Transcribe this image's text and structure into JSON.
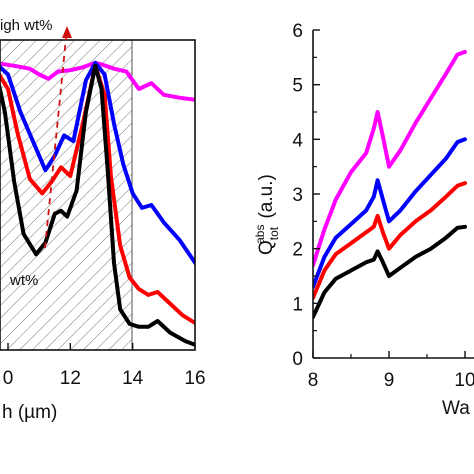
{
  "chart_data": [
    {
      "type": "line",
      "panel": "left",
      "xlabel": "h (µm)",
      "ylabel": "",
      "xlim": [
        9.6,
        16.2
      ],
      "ylim": [
        0,
        1.0
      ],
      "xticks": [
        "0",
        "12",
        "14",
        "16"
      ],
      "grid": false,
      "hatched_region": [
        9.6,
        14
      ],
      "annotations": {
        "arrow_label": "igh wt%",
        "low_label": "wt%"
      },
      "series": [
        {
          "color": "#ff00ff",
          "x": [
            9.6,
            10.2,
            10.7,
            11.0,
            11.3,
            11.6,
            12.0,
            12.4,
            12.8,
            13.0,
            13.4,
            13.8,
            14.2,
            14.6,
            15.0,
            15.5,
            16.2
          ],
          "y": [
            0.99,
            0.98,
            0.97,
            0.95,
            0.935,
            0.96,
            0.965,
            0.975,
            0.99,
            0.985,
            0.97,
            0.96,
            0.9,
            0.92,
            0.88,
            0.87,
            0.86
          ]
        },
        {
          "color": "#0000ff",
          "x": [
            9.6,
            10.0,
            10.4,
            10.8,
            11.2,
            11.5,
            11.8,
            12.1,
            12.5,
            12.8,
            13.1,
            13.4,
            13.7,
            14.0,
            14.3,
            14.6,
            15.0,
            15.5,
            16.2
          ],
          "y": [
            0.99,
            0.95,
            0.82,
            0.72,
            0.62,
            0.67,
            0.74,
            0.72,
            0.93,
            0.99,
            0.95,
            0.78,
            0.64,
            0.54,
            0.49,
            0.5,
            0.44,
            0.38,
            0.27
          ]
        },
        {
          "color": "#ff0000",
          "x": [
            9.6,
            10.0,
            10.3,
            10.7,
            11.1,
            11.4,
            11.7,
            12.0,
            12.4,
            12.8,
            13.1,
            13.3,
            13.6,
            13.9,
            14.2,
            14.5,
            14.8,
            15.2,
            15.6,
            16.2
          ],
          "y": [
            0.97,
            0.9,
            0.75,
            0.59,
            0.54,
            0.58,
            0.63,
            0.6,
            0.78,
            0.98,
            0.88,
            0.6,
            0.36,
            0.25,
            0.21,
            0.19,
            0.2,
            0.16,
            0.12,
            0.08
          ]
        },
        {
          "color": "#000000",
          "x": [
            9.6,
            9.9,
            10.2,
            10.5,
            10.9,
            11.2,
            11.5,
            11.7,
            11.9,
            12.2,
            12.5,
            12.8,
            13.0,
            13.2,
            13.4,
            13.6,
            13.9,
            14.2,
            14.5,
            14.8,
            15.2,
            15.7,
            16.2
          ],
          "y": [
            0.97,
            0.82,
            0.58,
            0.4,
            0.33,
            0.37,
            0.47,
            0.48,
            0.46,
            0.55,
            0.82,
            0.98,
            0.9,
            0.62,
            0.3,
            0.14,
            0.09,
            0.08,
            0.08,
            0.1,
            0.06,
            0.03,
            0.01
          ]
        }
      ]
    },
    {
      "type": "line",
      "panel": "right",
      "xlabel": "Wa",
      "ylabel": "Q_tot^abs (a.u.)",
      "xlim": [
        8,
        10.0
      ],
      "ylim": [
        0,
        6
      ],
      "xticks": [
        "8",
        "9",
        "10"
      ],
      "yticks": [
        "0",
        "1",
        "2",
        "3",
        "4",
        "5",
        "6"
      ],
      "grid": false,
      "series": [
        {
          "color": "#ff00ff",
          "x": [
            8.0,
            8.15,
            8.3,
            8.5,
            8.7,
            8.8,
            8.85,
            8.92,
            9.0,
            9.15,
            9.35,
            9.55,
            9.75,
            9.9,
            10.0
          ],
          "y": [
            1.7,
            2.35,
            2.9,
            3.4,
            3.75,
            4.2,
            4.5,
            4.05,
            3.5,
            3.8,
            4.3,
            4.75,
            5.2,
            5.55,
            5.6
          ]
        },
        {
          "color": "#0000ff",
          "x": [
            8.0,
            8.15,
            8.3,
            8.5,
            8.7,
            8.8,
            8.85,
            8.92,
            9.0,
            9.15,
            9.35,
            9.55,
            9.75,
            9.9,
            10.0
          ],
          "y": [
            1.3,
            1.85,
            2.2,
            2.45,
            2.7,
            2.95,
            3.25,
            2.9,
            2.5,
            2.7,
            3.05,
            3.35,
            3.65,
            3.95,
            4.0
          ]
        },
        {
          "color": "#ff0000",
          "x": [
            8.0,
            8.15,
            8.3,
            8.5,
            8.7,
            8.8,
            8.85,
            8.92,
            9.0,
            9.15,
            9.35,
            9.55,
            9.75,
            9.9,
            10.0
          ],
          "y": [
            1.1,
            1.6,
            1.9,
            2.1,
            2.3,
            2.4,
            2.6,
            2.3,
            2.0,
            2.25,
            2.5,
            2.7,
            2.95,
            3.15,
            3.2
          ]
        },
        {
          "color": "#000000",
          "x": [
            8.0,
            8.15,
            8.3,
            8.5,
            8.7,
            8.8,
            8.85,
            8.92,
            9.0,
            9.15,
            9.35,
            9.55,
            9.75,
            9.9,
            10.0
          ],
          "y": [
            0.75,
            1.2,
            1.45,
            1.6,
            1.75,
            1.8,
            1.95,
            1.75,
            1.5,
            1.65,
            1.85,
            2.0,
            2.2,
            2.38,
            2.4
          ]
        }
      ]
    }
  ]
}
